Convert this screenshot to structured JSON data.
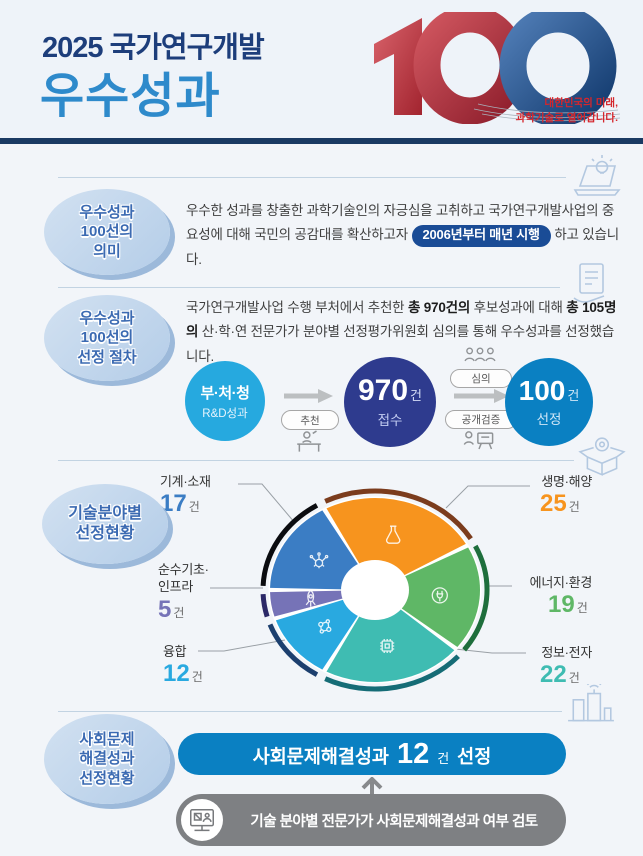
{
  "header": {
    "title_line1": "2025 국가연구개발",
    "title_line2": "우수성과",
    "logo_number": "100",
    "tagline": "대한민국의 미래,\n과학기술로 열어갑니다.",
    "colors": {
      "title_navy": "#1d3e7b",
      "title_blue": "#2e8acb",
      "bar_navy": "#1a3a63",
      "logo_red": "#b5303c",
      "logo_blue": "#1d4b86",
      "tagline_red": "#d5262c"
    }
  },
  "meaning": {
    "badge": "우수성과\n100선의\n의미",
    "text_before": "우수한 성과를 창출한 과학기술인의 자긍심을 고취하고 국가연구개발사업의 중요성에 대해 국민의 공감대를 확산하고자 ",
    "highlight": "2006년부터 매년 시행",
    "text_after": " 하고 있습니다.",
    "highlight_color": "#1a4c96"
  },
  "process": {
    "badge": "우수성과\n100선의\n선정 절차",
    "p1": "국가연구개발사업 수행 부처에서 추천한 ",
    "p2": "총 970건의",
    "p3": " 후보성과에 대해 ",
    "p4": "총 105명의",
    "p5": " 산·학·연 전문가가 분야별 선정평가위원회 심의를 통해 우수성과를 선정했습니다.",
    "flow": {
      "step1_title": "부·처·청",
      "step1_sub": "R&D성과",
      "arrow1_label": "추천",
      "step2_value": "970",
      "step2_unit": "건",
      "step2_sub": "접수",
      "arrow2_top_label": "심의",
      "arrow2_bottom_label": "공개검증",
      "step3_value": "100",
      "step3_unit": "건",
      "step3_sub": "선정",
      "colors": {
        "step1": "#26a9df",
        "step2": "#2e3b8e",
        "step3": "#0a80c2"
      }
    }
  },
  "fields": {
    "badge": "기술분야별\n선정현황"
  },
  "chart_data": {
    "type": "pie",
    "title": "기술분야별 선정현황",
    "unit": "건",
    "total": 100,
    "start_angle_deg": -28.8,
    "legend_position": "around",
    "segments": [
      {
        "label": "생명·해양",
        "value": 25,
        "color": "#f7941e",
        "ring": "#7b3c1d",
        "icon": "flask-icon"
      },
      {
        "label": "에너지·환경",
        "value": 19,
        "color": "#5fb766",
        "ring": "#1e6e3c",
        "icon": "plug-icon"
      },
      {
        "label": "정보·전자",
        "value": 22,
        "color": "#3fbcb2",
        "ring": "#156c76",
        "icon": "chip-icon"
      },
      {
        "label": "융합",
        "value": 12,
        "color": "#29a9e0",
        "ring": "#1c3f6e",
        "icon": "molecule-icon"
      },
      {
        "label": "순수기초·\n인프라",
        "value": 5,
        "color": "#7673b7",
        "ring": "#2c2968",
        "icon": "rocket-icon"
      },
      {
        "label": "기계·소재",
        "value": 17,
        "color": "#3b7dc4",
        "ring": "#0b0c10",
        "icon": "gear-network-icon"
      }
    ]
  },
  "social": {
    "badge": "사회문제\n해결성과\n선정현황",
    "result_prefix": "사회문제해결성과",
    "result_value": "12",
    "result_unit": "건",
    "result_suffix": "선정",
    "note": "기술 분야별 전문가가 사회문제해결성과 여부 검토",
    "colors": {
      "pill_blue": "#0a80c2",
      "pill_gray": "#7e8083"
    }
  }
}
